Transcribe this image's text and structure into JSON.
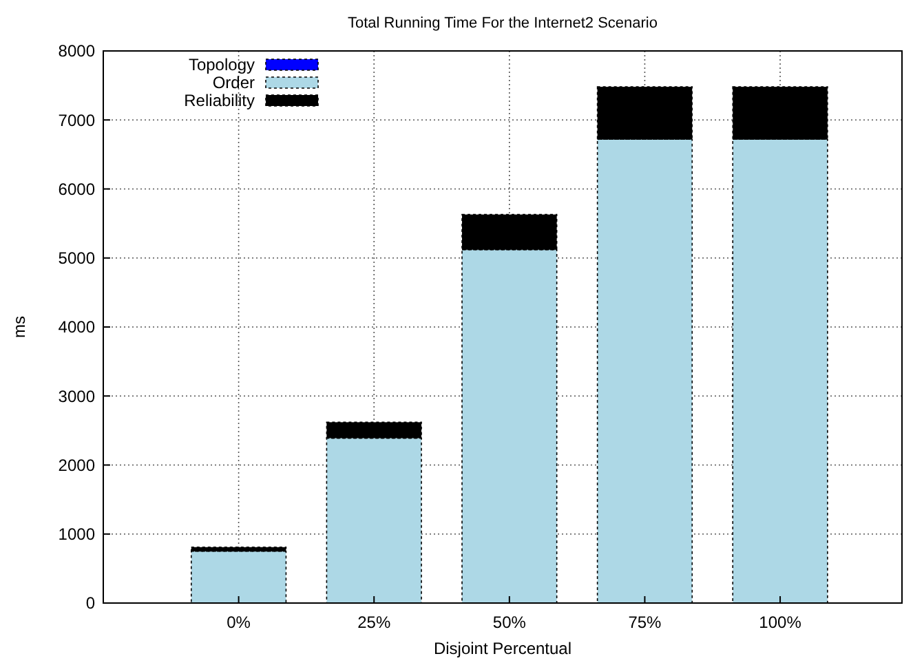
{
  "chart_data": {
    "type": "bar",
    "stacked": true,
    "title": "Total Running Time For the Internet2 Scenario",
    "xlabel": "Disjoint Percentual",
    "ylabel": "ms",
    "categories": [
      "0%",
      "25%",
      "50%",
      "75%",
      "100%"
    ],
    "series": [
      {
        "name": "Topology",
        "color": "#0000ff",
        "values": [
          null,
          null,
          null,
          null,
          null
        ]
      },
      {
        "name": "Order",
        "color": "#add8e6",
        "values": [
          750,
          2390,
          5120,
          6720,
          6720
        ]
      },
      {
        "name": "Reliability",
        "color": "#000000",
        "values": [
          60,
          230,
          510,
          760,
          760
        ]
      }
    ],
    "ylim": [
      0,
      8000
    ],
    "yticks": [
      0,
      1000,
      2000,
      3000,
      4000,
      5000,
      6000,
      7000,
      8000
    ],
    "grid": true,
    "legend": "top left"
  }
}
